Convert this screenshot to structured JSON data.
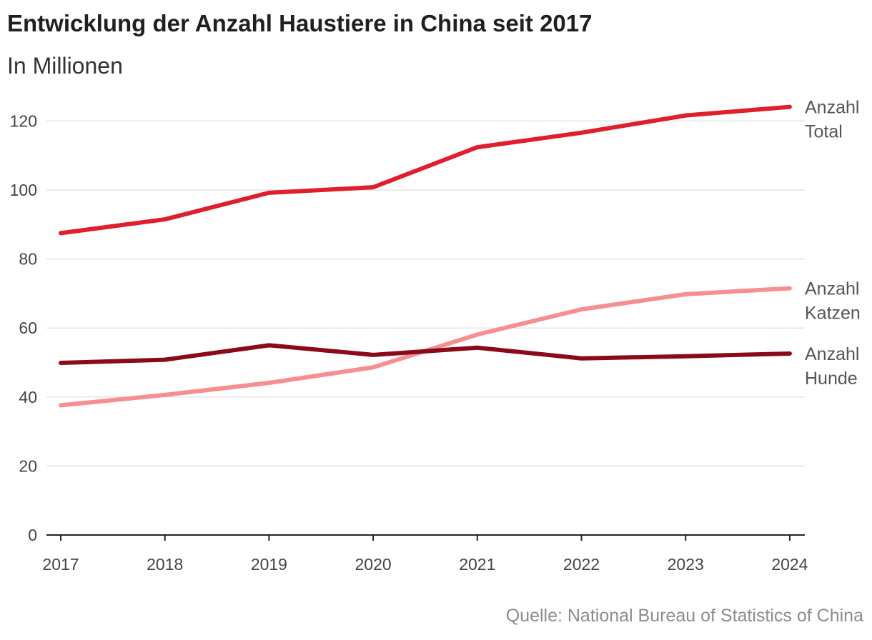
{
  "chart_data": {
    "type": "line",
    "title": "Entwicklung der Anzahl Haustiere in China seit 2017",
    "subtitle": "In Millionen",
    "source": "Quelle: National Bureau of Statistics of China",
    "x": [
      "2017",
      "2018",
      "2019",
      "2020",
      "2021",
      "2022",
      "2023",
      "2024"
    ],
    "yticks": [
      "0",
      "20",
      "40",
      "60",
      "80",
      "100",
      "120"
    ],
    "ylim": [
      0,
      124
    ],
    "grid": true,
    "series": [
      {
        "name": "Anzahl Total",
        "label_lines": [
          "Anzahl",
          "Total"
        ],
        "color": "#e01e2d",
        "values": [
          87.5,
          91.5,
          99.2,
          100.8,
          112.4,
          116.6,
          121.6,
          124.1
        ]
      },
      {
        "name": "Anzahl Katzen",
        "label_lines": [
          "Anzahl",
          "Katzen"
        ],
        "color": "#f78f90",
        "values": [
          37.6,
          40.6,
          44.1,
          48.6,
          58.1,
          65.4,
          69.8,
          71.5
        ]
      },
      {
        "name": "Anzahl Hunde",
        "label_lines": [
          "Anzahl",
          "Hunde"
        ],
        "color": "#8b0a1a",
        "values": [
          49.9,
          50.8,
          55.0,
          52.2,
          54.3,
          51.2,
          51.8,
          52.6
        ]
      }
    ]
  }
}
